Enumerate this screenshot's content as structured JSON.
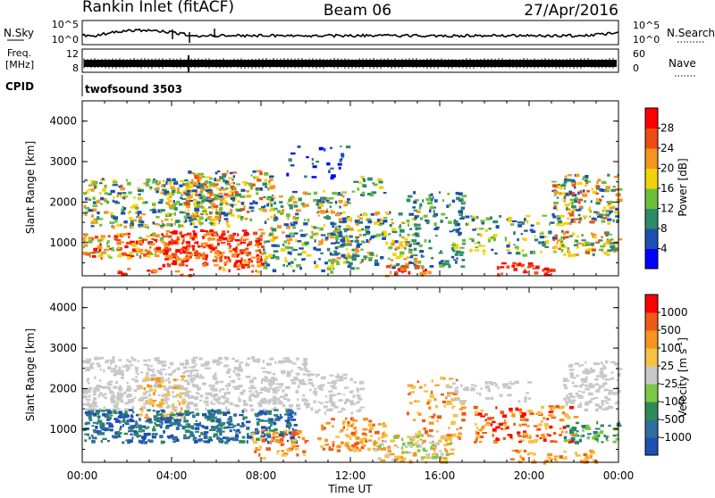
{
  "header": {
    "station": "Rankin Inlet (fitACF)",
    "beam": "Beam 06",
    "date": "27/Apr/2016"
  },
  "noise_panel": {
    "left_label": "N.Sky",
    "right_label": "N.Search",
    "left_ticks": [
      "10^5",
      "10^0"
    ],
    "right_ticks": [
      "10^5",
      "10^0"
    ]
  },
  "freq_panel": {
    "left_label_1": "Freq.",
    "left_label_2": "[MHz]",
    "right_label": "Nave",
    "left_ticks": [
      "12",
      "8"
    ],
    "right_ticks": [
      "60",
      "0"
    ]
  },
  "cpid": {
    "label": "CPID",
    "value": "twofsound 3503"
  },
  "chart_data": [
    {
      "type": "heatmap",
      "name": "power",
      "xlabel": "Time UT",
      "ylabel": "Slant Range [km]",
      "x_ticks": [
        "00:00",
        "04:00",
        "08:00",
        "12:00",
        "16:00",
        "20:00",
        "00:00"
      ],
      "y_ticks": [
        1000,
        2000,
        3000,
        4000
      ],
      "ylim": [
        180,
        4500
      ],
      "colorbar": {
        "label": "Power [dB]",
        "ticks": [
          4,
          8,
          12,
          16,
          20,
          24,
          28
        ],
        "range": [
          0,
          32
        ],
        "colors": [
          "#0000ff",
          "#1e4fb0",
          "#2e8b6a",
          "#6cbf3c",
          "#f4d20a",
          "#f7941d",
          "#ef4b14",
          "#ff0000"
        ]
      }
    },
    {
      "type": "heatmap",
      "name": "velocity",
      "xlabel": "Time UT",
      "ylabel": "Slant Range [km]",
      "x_ticks": [
        "00:00",
        "04:00",
        "08:00",
        "12:00",
        "16:00",
        "20:00",
        "00:00"
      ],
      "y_ticks": [
        1000,
        2000,
        3000,
        4000
      ],
      "ylim": [
        180,
        4500
      ],
      "colorbar": {
        "label": "Velocity [m s^-1]",
        "ticks": [
          "1000",
          "500",
          "100",
          "25",
          "-25",
          "-100",
          "-500",
          "-1000"
        ],
        "colors": [
          "#1f4fb4",
          "#2e6f9e",
          "#2e8b57",
          "#7ac943",
          "#c8c8c8",
          "#f5c242",
          "#f7941d",
          "#ef5a14",
          "#ff0000"
        ]
      }
    }
  ]
}
